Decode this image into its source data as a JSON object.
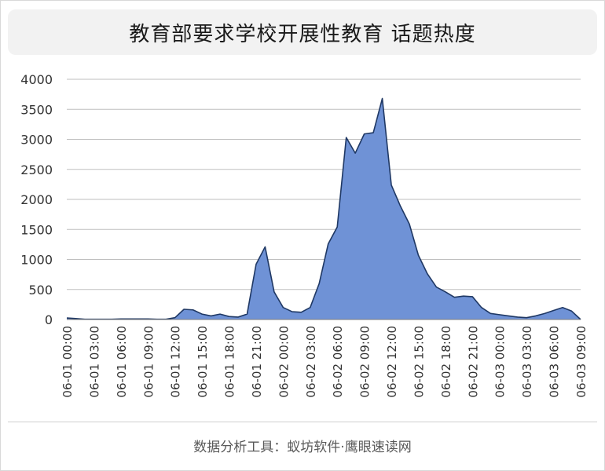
{
  "chart_data": {
    "type": "area",
    "title": "教育部要求学校开展性教育 话题热度",
    "footer": "数据分析工具：蚁坊软件·鹰眼速读网",
    "ylim": [
      0,
      4000
    ],
    "yticks": [
      0,
      500,
      1000,
      1500,
      2000,
      2500,
      3000,
      3500,
      4000
    ],
    "xlabels": [
      "06-01 00:00",
      "06-01 03:00",
      "06-01 06:00",
      "06-01 09:00",
      "06-01 12:00",
      "06-01 15:00",
      "06-01 18:00",
      "06-01 21:00",
      "06-02 00:00",
      "06-02 03:00",
      "06-02 06:00",
      "06-02 09:00",
      "06-02 12:00",
      "06-02 15:00",
      "06-02 18:00",
      "06-02 21:00",
      "06-03 00:00",
      "06-03 03:00",
      "06-03 06:00",
      "06-03 09:00"
    ],
    "grid": true,
    "colors": {
      "fill": "#6f92d6",
      "line": "#1f3864",
      "grid": "#bfbfbf"
    },
    "series": [
      {
        "values": [
          25,
          15,
          5,
          5,
          5,
          5,
          10,
          10,
          10,
          10,
          5,
          5,
          30,
          170,
          160,
          90,
          60,
          90,
          50,
          40,
          90,
          920,
          1210,
          460,
          200,
          130,
          120,
          200,
          600,
          1260,
          1540,
          3030,
          2770,
          3090,
          3110,
          3680,
          2240,
          1890,
          1590,
          1070,
          760,
          540,
          460,
          370,
          390,
          380,
          200,
          100,
          80,
          60,
          40,
          30,
          60,
          100,
          150,
          200,
          140,
          0
        ]
      }
    ]
  }
}
